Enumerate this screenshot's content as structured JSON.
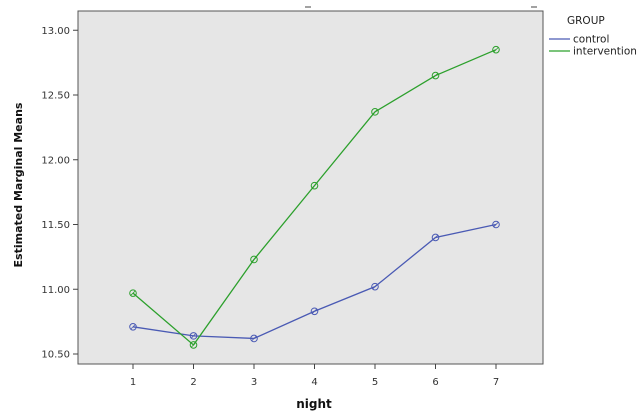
{
  "chart_data": {
    "type": "line",
    "xlabel": "night",
    "ylabel": "Estimated Marginal Means",
    "categories": [
      "1",
      "2",
      "3",
      "4",
      "5",
      "6",
      "7"
    ],
    "ylim": [
      10.4,
      13.15
    ],
    "yticks": [
      "10.50",
      "11.00",
      "11.50",
      "12.00",
      "12.50",
      "13.00"
    ],
    "grid": false,
    "legend": {
      "title": "GROUP",
      "position": "top-right"
    },
    "series": [
      {
        "name": "control",
        "color": "#4a5ab4",
        "values": [
          10.71,
          10.64,
          10.62,
          10.83,
          11.02,
          11.4,
          11.5
        ]
      },
      {
        "name": "intervention",
        "color": "#2ca02c",
        "values": [
          10.97,
          10.57,
          11.23,
          11.8,
          12.37,
          12.65,
          12.85
        ]
      }
    ]
  }
}
